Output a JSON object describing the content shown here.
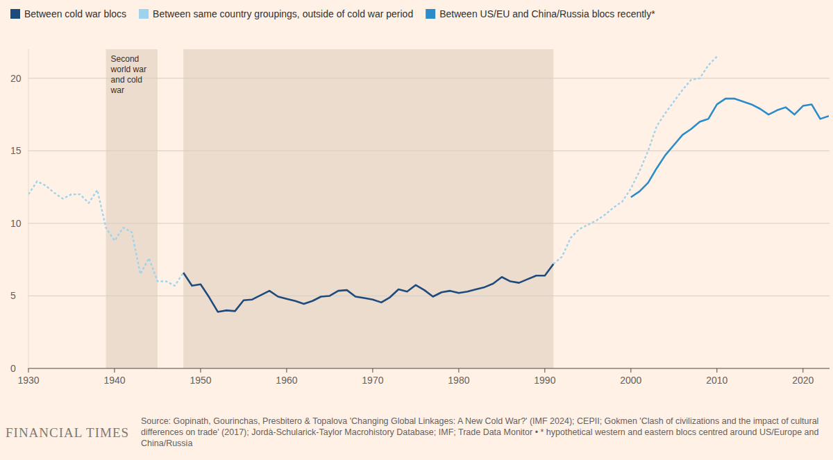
{
  "chart_data": {
    "type": "line",
    "x": [
      1930,
      1931,
      1932,
      1933,
      1934,
      1935,
      1936,
      1937,
      1938,
      1939,
      1940,
      1941,
      1942,
      1943,
      1944,
      1945,
      1946,
      1947,
      1948,
      1949,
      1950,
      1951,
      1952,
      1953,
      1954,
      1955,
      1956,
      1957,
      1958,
      1959,
      1960,
      1961,
      1962,
      1963,
      1964,
      1965,
      1966,
      1967,
      1968,
      1969,
      1970,
      1971,
      1972,
      1973,
      1974,
      1975,
      1976,
      1977,
      1978,
      1979,
      1980,
      1981,
      1982,
      1983,
      1984,
      1985,
      1986,
      1987,
      1988,
      1989,
      1990,
      1991,
      1992,
      1993,
      1994,
      1995,
      1996,
      1997,
      1998,
      1999,
      2000,
      2001,
      2002,
      2003,
      2004,
      2005,
      2006,
      2007,
      2008,
      2009,
      2010,
      2011,
      2012,
      2013,
      2014,
      2015,
      2016,
      2017,
      2018,
      2019,
      2020,
      2021,
      2022,
      2023
    ],
    "xlim": [
      1930,
      2023
    ],
    "xticks": [
      1930,
      1940,
      1950,
      1960,
      1970,
      1980,
      1990,
      2000,
      2010,
      2020
    ],
    "ylim": [
      0,
      22
    ],
    "yticks": [
      0,
      5,
      10,
      15,
      20
    ],
    "grid": true,
    "legend": "top-left",
    "series": [
      {
        "name": "Between cold war blocs",
        "color": "#1e4a7c",
        "line_style": "solid",
        "values": [
          null,
          null,
          null,
          null,
          null,
          null,
          null,
          null,
          null,
          null,
          null,
          null,
          null,
          null,
          null,
          null,
          null,
          null,
          6.6,
          5.7,
          5.8,
          4.9,
          3.9,
          4.0,
          3.95,
          4.7,
          4.75,
          5.05,
          5.35,
          4.95,
          4.8,
          4.65,
          4.45,
          4.65,
          4.95,
          5.0,
          5.35,
          5.4,
          4.95,
          4.85,
          4.75,
          4.55,
          4.9,
          5.45,
          5.3,
          5.75,
          5.4,
          4.95,
          5.25,
          5.35,
          5.2,
          5.3,
          5.45,
          5.6,
          5.85,
          6.3,
          6.0,
          5.9,
          6.15,
          6.4,
          6.4,
          7.2,
          null,
          null,
          null,
          null,
          null,
          null,
          null,
          null,
          null,
          null,
          null,
          null,
          null,
          null,
          null,
          null,
          null,
          null,
          null,
          null,
          null,
          null,
          null,
          null,
          null,
          null,
          null,
          null,
          null,
          null,
          null,
          null
        ]
      },
      {
        "name": "Between same country groupings, outside of cold war period",
        "color": "#9dd3ee",
        "line_style": "dotted",
        "values": [
          12.0,
          12.9,
          12.6,
          12.1,
          11.7,
          12.0,
          12.0,
          11.4,
          12.3,
          9.7,
          8.8,
          9.7,
          9.4,
          6.5,
          7.6,
          6.0,
          6.0,
          5.7,
          6.6,
          null,
          null,
          null,
          null,
          null,
          null,
          null,
          null,
          null,
          null,
          null,
          null,
          null,
          null,
          null,
          null,
          null,
          null,
          null,
          null,
          null,
          null,
          null,
          null,
          null,
          null,
          null,
          null,
          null,
          null,
          null,
          null,
          null,
          null,
          null,
          null,
          null,
          null,
          null,
          null,
          null,
          null,
          7.2,
          7.7,
          9.0,
          9.6,
          9.9,
          10.2,
          10.6,
          11.1,
          11.5,
          12.4,
          13.6,
          15.0,
          16.7,
          17.6,
          18.4,
          19.2,
          19.9,
          20.0,
          20.9,
          21.5,
          null,
          null,
          null,
          null,
          null,
          null,
          null,
          null,
          null,
          null,
          null,
          null,
          null
        ]
      },
      {
        "name": "Between US/EU and China/Russia blocs recently*",
        "color": "#2b8ccb",
        "line_style": "solid",
        "values": [
          null,
          null,
          null,
          null,
          null,
          null,
          null,
          null,
          null,
          null,
          null,
          null,
          null,
          null,
          null,
          null,
          null,
          null,
          null,
          null,
          null,
          null,
          null,
          null,
          null,
          null,
          null,
          null,
          null,
          null,
          null,
          null,
          null,
          null,
          null,
          null,
          null,
          null,
          null,
          null,
          null,
          null,
          null,
          null,
          null,
          null,
          null,
          null,
          null,
          null,
          null,
          null,
          null,
          null,
          null,
          null,
          null,
          null,
          null,
          null,
          null,
          null,
          null,
          null,
          null,
          null,
          null,
          null,
          null,
          null,
          11.8,
          12.2,
          12.8,
          13.8,
          14.7,
          15.4,
          16.1,
          16.5,
          17.0,
          17.2,
          18.2,
          18.6,
          18.6,
          18.4,
          18.2,
          17.9,
          17.5,
          17.8,
          18.0,
          17.5,
          18.1,
          18.2,
          17.2,
          17.4
        ]
      }
    ],
    "shaded_periods": [
      {
        "start": 1939,
        "end": 1945,
        "label": "Second world war and cold war"
      },
      {
        "start": 1948,
        "end": 1991
      }
    ],
    "source": "Source: Gopinath, Gourinchas, Presbitero & Topalova 'Changing Global Linkages: A New Cold War?' (IMF 2024); CEPII; Gokmen 'Clash of civilizations and the impact of cultural differences on trade' (2017); Jordà-Schularick-Taylor Macrohistory Database; IMF; Trade Data Monitor • * hypothetical western and eastern blocs centred around US/Europe and China/Russia",
    "branding": "FINANCIAL TIMES"
  }
}
